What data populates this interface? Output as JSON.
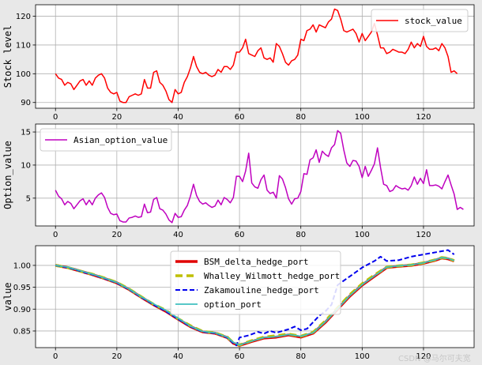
{
  "chart_data": [
    {
      "type": "line",
      "ylabel": "Stock level",
      "xlim": [
        -6.5,
        136.5
      ],
      "ylim": [
        88,
        124
      ],
      "xticks": [
        0,
        20,
        40,
        60,
        80,
        100,
        120
      ],
      "yticks": [
        90,
        100,
        110,
        120
      ],
      "grid": true,
      "legend": "upper right",
      "series": [
        {
          "name": "stock_value",
          "color": "#ff0000",
          "x0": 0,
          "values": [
            100,
            98.5,
            98,
            96,
            97,
            96.5,
            94.5,
            96,
            97.5,
            98,
            96,
            97.5,
            96,
            98.5,
            99.5,
            100,
            98.5,
            95,
            93.5,
            93,
            93.5,
            90.5,
            90,
            90,
            92,
            92.5,
            93,
            92.5,
            93,
            98,
            95,
            95,
            100.5,
            101,
            97,
            96,
            94,
            91,
            90,
            94.5,
            93,
            93.5,
            97,
            99,
            102,
            106,
            102.5,
            100.5,
            100,
            100.5,
            99.5,
            99,
            99.5,
            101.5,
            100.5,
            102.5,
            102.5,
            101.5,
            103,
            107.5,
            107.5,
            109,
            112,
            107,
            106.5,
            106,
            108,
            109,
            105.5,
            105,
            105.5,
            104,
            110.5,
            109.5,
            107,
            104,
            103,
            104.5,
            105,
            106.5,
            112,
            111.5,
            115,
            115.5,
            117,
            114.5,
            117,
            116.5,
            116,
            118,
            119,
            122.5,
            122,
            119,
            115,
            114.5,
            115,
            115.5,
            114,
            111,
            114,
            111.5,
            113,
            114.5,
            117.5,
            113.5,
            109,
            109,
            107,
            107.5,
            108.5,
            108,
            107.5,
            107.5,
            107,
            108.5,
            111,
            109,
            110.5,
            109.5,
            113,
            109.5,
            108.5,
            108.5,
            109,
            108,
            110.5,
            109,
            106,
            100.5,
            101,
            100
          ]
        }
      ]
    },
    {
      "type": "line",
      "ylabel": "Option_value",
      "xlim": [
        -6.5,
        136.5
      ],
      "ylim": [
        0.8,
        16.2
      ],
      "xticks": [
        0,
        20,
        40,
        60,
        80,
        100,
        120
      ],
      "yticks": [
        5,
        10,
        15
      ],
      "grid": true,
      "legend": "upper left",
      "series": [
        {
          "name": "Asian_option_value",
          "color": "#bf00bf",
          "x0": 0,
          "values": [
            6.2,
            5.3,
            4.9,
            4.0,
            4.5,
            4.2,
            3.4,
            4.0,
            4.6,
            4.9,
            4.0,
            4.7,
            4.0,
            5.0,
            5.5,
            5.8,
            5.1,
            3.6,
            2.7,
            2.5,
            2.6,
            1.6,
            1.4,
            1.4,
            2.0,
            2.1,
            2.3,
            2.1,
            2.2,
            4.1,
            2.8,
            2.9,
            4.8,
            5.1,
            3.4,
            3.2,
            2.6,
            1.7,
            1.3,
            2.7,
            2.1,
            2.2,
            3.2,
            3.9,
            5.3,
            7.1,
            5.4,
            4.5,
            4.1,
            4.3,
            3.9,
            3.6,
            3.8,
            4.7,
            4.0,
            5.1,
            4.8,
            4.3,
            5.1,
            8.3,
            8.3,
            7.5,
            9.1,
            11.8,
            7.3,
            6.7,
            6.5,
            7.8,
            8.5,
            6.2,
            5.7,
            5.9,
            5.0,
            8.4,
            7.9,
            6.6,
            4.9,
            4.1,
            4.9,
            5.0,
            6.0,
            8.7,
            8.6,
            10.8,
            11.1,
            12.3,
            10.4,
            12.1,
            11.6,
            11.3,
            12.6,
            13.1,
            15.2,
            14.8,
            12.3,
            10.3,
            9.8,
            10.7,
            10.6,
            9.8,
            8.1,
            9.8,
            8.3,
            9.2,
            10.2,
            12.6,
            9.6,
            7.1,
            6.9,
            6.0,
            6.2,
            6.9,
            6.6,
            6.4,
            6.5,
            6.2,
            6.9,
            8.2,
            7.1,
            8.0,
            7.2,
            9.3,
            6.9,
            6.9,
            7.0,
            6.8,
            6.4,
            7.5,
            8.5,
            7.0,
            5.6,
            3.3,
            3.6,
            3.3
          ]
        }
      ]
    },
    {
      "type": "line",
      "ylabel": "value",
      "xlim": [
        -6.5,
        136.5
      ],
      "ylim": [
        0.812,
        1.045
      ],
      "xticks": [
        0,
        20,
        40,
        60,
        80,
        100,
        120
      ],
      "yticks": [
        0.85,
        0.9,
        0.95,
        1.0
      ],
      "grid": true,
      "legend": "upper center",
      "series": [
        {
          "name": "BSM_delta_hedge_port",
          "color": "#e00000",
          "style": "solid",
          "x": [
            0,
            4,
            8,
            12,
            16,
            20,
            24,
            28,
            32,
            36,
            40,
            44,
            48,
            52,
            56,
            58,
            60,
            64,
            68,
            72,
            76,
            80,
            84,
            88,
            92,
            96,
            100,
            104,
            108,
            112,
            116,
            120,
            124,
            126,
            128,
            130
          ],
          "values": [
            1.0,
            0.995,
            0.987,
            0.979,
            0.97,
            0.96,
            0.945,
            0.927,
            0.91,
            0.895,
            0.877,
            0.86,
            0.848,
            0.845,
            0.835,
            0.822,
            0.817,
            0.826,
            0.834,
            0.836,
            0.841,
            0.836,
            0.845,
            0.87,
            0.9,
            0.93,
            0.955,
            0.975,
            0.995,
            0.998,
            1.0,
            1.005,
            1.012,
            1.017,
            1.015,
            1.01
          ]
        },
        {
          "name": "Whalley_Wilmott_hedge_port",
          "color": "#bfbf00",
          "style": "dashed",
          "x": [
            0,
            4,
            8,
            12,
            16,
            20,
            24,
            28,
            32,
            36,
            40,
            44,
            48,
            52,
            56,
            58,
            60,
            64,
            68,
            72,
            76,
            80,
            84,
            88,
            92,
            96,
            100,
            104,
            108,
            112,
            116,
            120,
            124,
            126,
            128,
            130
          ],
          "values": [
            1.0,
            0.995,
            0.987,
            0.98,
            0.971,
            0.961,
            0.946,
            0.928,
            0.911,
            0.897,
            0.878,
            0.862,
            0.849,
            0.846,
            0.836,
            0.823,
            0.818,
            0.828,
            0.836,
            0.839,
            0.843,
            0.838,
            0.847,
            0.873,
            0.903,
            0.933,
            0.958,
            0.978,
            0.996,
            0.999,
            1.001,
            1.006,
            1.013,
            1.018,
            1.016,
            1.011
          ]
        },
        {
          "name": "Zakamouline_hedge_port",
          "color": "#0000ee",
          "style": "dashed",
          "x": [
            0,
            4,
            8,
            12,
            16,
            20,
            24,
            28,
            32,
            36,
            40,
            44,
            48,
            52,
            56,
            58,
            59,
            60,
            63,
            66,
            68,
            70,
            72,
            74,
            76,
            78,
            80,
            82,
            84,
            86,
            88,
            90,
            92,
            96,
            100,
            104,
            106,
            108,
            112,
            116,
            120,
            124,
            128,
            130
          ],
          "values": [
            1.0,
            0.995,
            0.987,
            0.979,
            0.97,
            0.96,
            0.945,
            0.927,
            0.91,
            0.895,
            0.877,
            0.86,
            0.848,
            0.845,
            0.835,
            0.822,
            0.817,
            0.835,
            0.84,
            0.848,
            0.844,
            0.85,
            0.846,
            0.85,
            0.854,
            0.86,
            0.852,
            0.855,
            0.87,
            0.885,
            0.895,
            0.91,
            0.955,
            0.975,
            0.995,
            1.01,
            1.02,
            1.01,
            1.012,
            1.02,
            1.025,
            1.03,
            1.035,
            1.025
          ]
        },
        {
          "name": "option_port",
          "color": "#3fbfbf",
          "style": "solid",
          "x": [
            0,
            4,
            8,
            12,
            16,
            20,
            24,
            28,
            32,
            36,
            40,
            44,
            48,
            52,
            56,
            58,
            60,
            64,
            68,
            72,
            76,
            80,
            84,
            88,
            92,
            96,
            100,
            104,
            108,
            112,
            116,
            120,
            124,
            126,
            128,
            130
          ],
          "values": [
            1.0,
            0.996,
            0.988,
            0.98,
            0.971,
            0.961,
            0.946,
            0.928,
            0.912,
            0.897,
            0.879,
            0.861,
            0.849,
            0.846,
            0.836,
            0.824,
            0.818,
            0.827,
            0.835,
            0.837,
            0.842,
            0.838,
            0.846,
            0.871,
            0.901,
            0.931,
            0.956,
            0.976,
            0.996,
            0.999,
            1.001,
            1.006,
            1.013,
            1.018,
            1.016,
            1.011
          ]
        }
      ]
    }
  ],
  "watermark": "CSDN @马尔可夫宽"
}
